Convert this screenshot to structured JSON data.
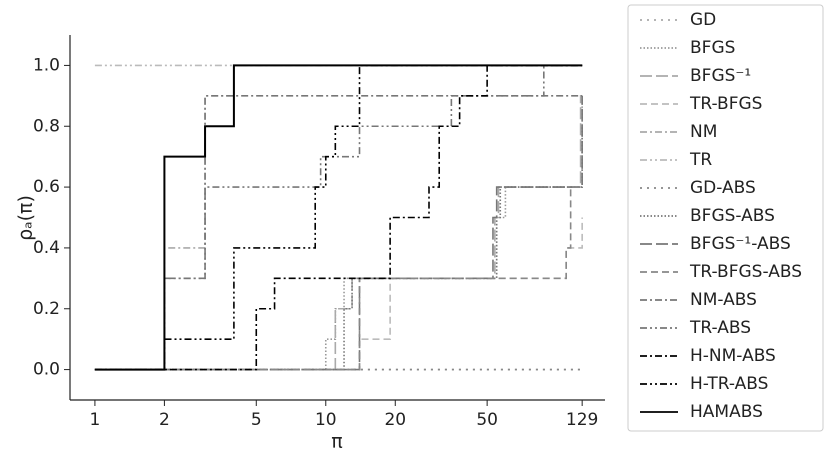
{
  "chart_data": {
    "type": "step",
    "xlabel": "π",
    "ylabel": "ρₐ(π)",
    "xscale": "log",
    "xlim": [
      0.78,
      162
    ],
    "xticks": [
      1,
      2,
      5,
      10,
      20,
      50,
      129
    ],
    "ylim": [
      -0.1,
      1.1
    ],
    "yticks": [
      {
        "value": 0,
        "label": "0.0"
      },
      0.2,
      0.4,
      0.6,
      0.8,
      {
        "value": 1,
        "label": "1.0"
      }
    ],
    "legend": "outside-right",
    "series": [
      {
        "name": "GD",
        "color": "#aaaaaa",
        "linestyle": "dotted",
        "x": [
          1,
          129
        ],
        "values": [
          0,
          0
        ]
      },
      {
        "name": "BFGS",
        "color": "#999999",
        "linestyle": "densely-dotted",
        "x": [
          1,
          10,
          11,
          12,
          55,
          60,
          129
        ],
        "values": [
          0,
          0.1,
          0.2,
          0.3,
          0.5,
          0.6,
          0.9
        ]
      },
      {
        "name": "BFGS⁻¹",
        "color": "#aaaaaa",
        "linestyle": "long-dash",
        "x": [
          1,
          11,
          13,
          54,
          56,
          127,
          129
        ],
        "values": [
          0,
          0.2,
          0.3,
          0.5,
          0.6,
          0.9,
          0.9
        ]
      },
      {
        "name": "TR-BFGS",
        "color": "#bbbbbb",
        "linestyle": "dashed",
        "x": [
          1,
          14,
          19,
          110,
          120,
          129
        ],
        "values": [
          0,
          0.1,
          0.3,
          0.4,
          0.4,
          0.5
        ]
      },
      {
        "name": "NM",
        "color": "#aaaaaa",
        "linestyle": "dashdot",
        "x": [
          1,
          2,
          3,
          4,
          129
        ],
        "values": [
          0,
          0.4,
          0.9,
          1.0,
          1.0
        ]
      },
      {
        "name": "TR",
        "color": "#bbbbbb",
        "linestyle": "dashdotdot",
        "x": [
          1,
          129
        ],
        "values": [
          1,
          1
        ]
      },
      {
        "name": "GD-ABS",
        "color": "#888888",
        "linestyle": "dotted",
        "x": [
          1,
          129
        ],
        "values": [
          0,
          0
        ]
      },
      {
        "name": "BFGS-ABS",
        "color": "#777777",
        "linestyle": "densely-dotted",
        "x": [
          1,
          12,
          13,
          55,
          57,
          129
        ],
        "values": [
          0,
          0.2,
          0.3,
          0.5,
          0.6,
          0.8
        ]
      },
      {
        "name": "BFGS⁻¹-ABS",
        "color": "#777777",
        "linestyle": "long-dash",
        "x": [
          1,
          14,
          53,
          55,
          125,
          129
        ],
        "values": [
          0,
          0.3,
          0.5,
          0.6,
          0.6,
          0.9
        ]
      },
      {
        "name": "TR-BFGS-ABS",
        "color": "#888888",
        "linestyle": "dashed",
        "x": [
          1,
          14,
          110,
          115,
          129
        ],
        "values": [
          0,
          0.3,
          0.4,
          0.6,
          0.6
        ]
      },
      {
        "name": "NM-ABS",
        "color": "#777777",
        "linestyle": "dashdot",
        "x": [
          1,
          2,
          3,
          129
        ],
        "values": [
          0,
          0.3,
          0.9,
          0.9
        ]
      },
      {
        "name": "TR-ABS",
        "color": "#777777",
        "linestyle": "dashdotdot",
        "x": [
          1,
          2,
          3,
          9.5,
          14,
          35,
          88,
          129
        ],
        "values": [
          0,
          0.3,
          0.6,
          0.7,
          0.8,
          0.9,
          1.0,
          1.0
        ]
      },
      {
        "name": "H-NM-ABS",
        "color": "#000000",
        "linestyle": "dashdot",
        "x": [
          1,
          5,
          6,
          19,
          28,
          31,
          38,
          50,
          129
        ],
        "values": [
          0,
          0.2,
          0.3,
          0.5,
          0.6,
          0.8,
          0.9,
          1.0,
          1.0
        ]
      },
      {
        "name": "H-TR-ABS",
        "color": "#000000",
        "linestyle": "dashdotdot",
        "x": [
          1,
          2,
          4,
          9,
          10,
          11,
          14,
          129
        ],
        "values": [
          0,
          0.1,
          0.4,
          0.6,
          0.7,
          0.8,
          1.0,
          1.0
        ]
      },
      {
        "name": "HAMABS",
        "color": "#000000",
        "linestyle": "solid",
        "x": [
          1,
          2,
          3,
          4,
          129
        ],
        "values": [
          0,
          0.7,
          0.8,
          1.0,
          1.0
        ]
      }
    ]
  }
}
